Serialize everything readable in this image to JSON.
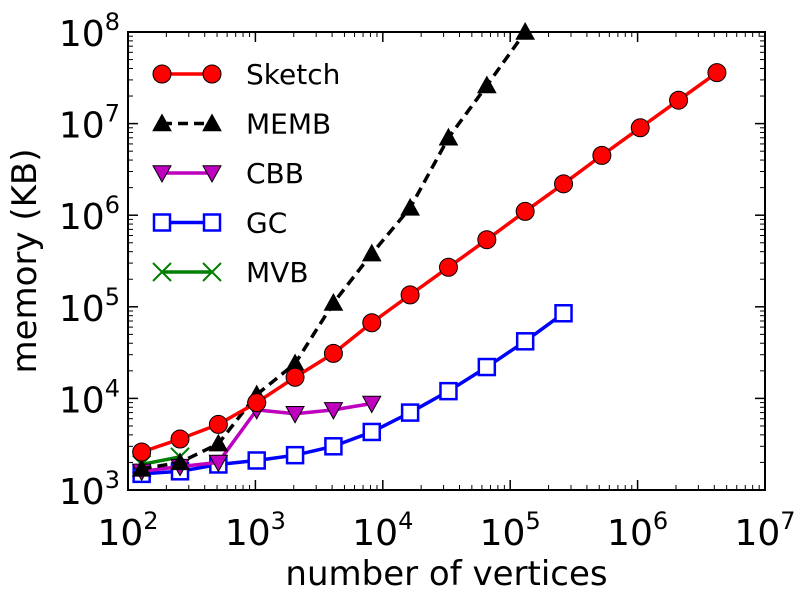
{
  "chart_data": {
    "type": "line",
    "xlabel": "number of vertices",
    "ylabel": "memory (KB)",
    "x_scale": "log",
    "y_scale": "log",
    "xlim": [
      100,
      10000000
    ],
    "ylim": [
      1000,
      100000000
    ],
    "x_ticks": [
      {
        "value": 100,
        "base": "10",
        "exp": "2"
      },
      {
        "value": 1000,
        "base": "10",
        "exp": "3"
      },
      {
        "value": 10000,
        "base": "10",
        "exp": "4"
      },
      {
        "value": 100000,
        "base": "10",
        "exp": "5"
      },
      {
        "value": 1000000,
        "base": "10",
        "exp": "6"
      },
      {
        "value": 10000000,
        "base": "10",
        "exp": "7"
      }
    ],
    "y_ticks": [
      {
        "value": 1000,
        "base": "10",
        "exp": "3"
      },
      {
        "value": 10000,
        "base": "10",
        "exp": "4"
      },
      {
        "value": 100000,
        "base": "10",
        "exp": "5"
      },
      {
        "value": 1000000,
        "base": "10",
        "exp": "6"
      },
      {
        "value": 10000000,
        "base": "10",
        "exp": "7"
      },
      {
        "value": 100000000,
        "base": "10",
        "exp": "8"
      }
    ],
    "grid": false,
    "legend_position": "top-left",
    "series": [
      {
        "name": "Sketch",
        "color": "#ff0000",
        "marker_fill": "#ff0000",
        "marker": "circle",
        "line_style": "solid",
        "x": [
          128,
          256,
          512,
          1024,
          2048,
          4096,
          8192,
          16384,
          32768,
          65536,
          131072,
          262144,
          524288,
          1048576,
          2097152,
          4194304
        ],
        "y": [
          2600,
          3600,
          5200,
          9000,
          17000,
          31000,
          67000,
          135000,
          270000,
          540000,
          1100000,
          2200000,
          4500000,
          9000000,
          18000000,
          36000000
        ]
      },
      {
        "name": "MEMB",
        "color": "#000000",
        "marker_fill": "#000000",
        "marker": "triangle-up",
        "line_style": "dashed",
        "x": [
          128,
          256,
          512,
          1024,
          2048,
          4096,
          8192,
          16384,
          32768,
          65536,
          131072
        ],
        "y": [
          1700,
          2000,
          3200,
          11000,
          24000,
          110000,
          380000,
          1200000,
          7000000,
          26000000,
          100000000
        ]
      },
      {
        "name": "CBB",
        "color": "#bf00bf",
        "marker_fill": "#bf00bf",
        "marker": "triangle-down",
        "line_style": "solid",
        "x": [
          128,
          256,
          512,
          1024,
          2048,
          4096,
          8192
        ],
        "y": [
          1600,
          1800,
          2000,
          7500,
          6800,
          7500,
          8800
        ]
      },
      {
        "name": "GC",
        "color": "#0000ff",
        "marker_fill": "#ffffff",
        "marker": "square",
        "line_style": "solid",
        "x": [
          128,
          256,
          512,
          1024,
          2048,
          4096,
          8192,
          16384,
          32768,
          65536,
          131072,
          262144
        ],
        "y": [
          1500,
          1600,
          1900,
          2100,
          2400,
          3000,
          4300,
          7000,
          12000,
          22000,
          42000,
          85000
        ]
      },
      {
        "name": "MVB",
        "color": "#008000",
        "marker_fill": "#008000",
        "marker": "x",
        "line_style": "solid",
        "x": [
          128,
          256
        ],
        "y": [
          1900,
          2300
        ]
      }
    ]
  }
}
